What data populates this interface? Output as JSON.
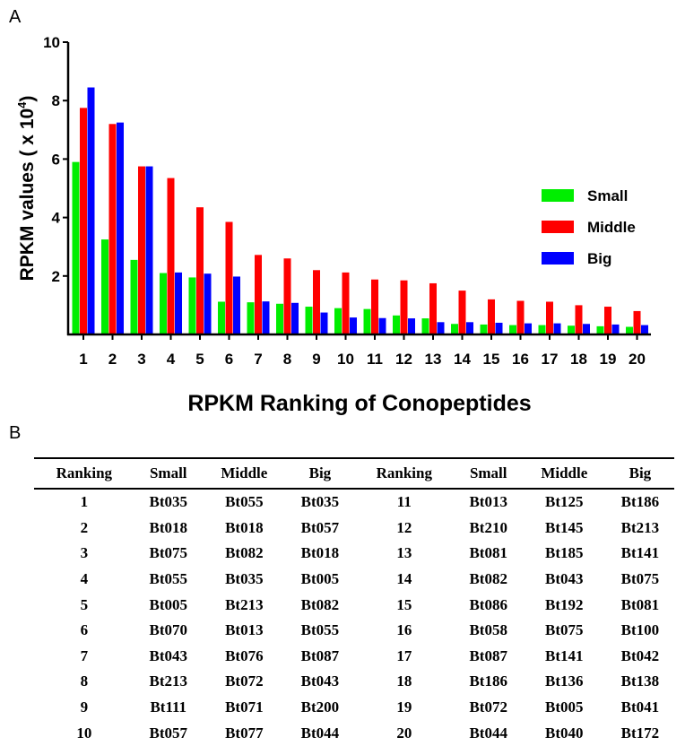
{
  "panels": {
    "a": "A",
    "b": "B"
  },
  "chart_data": {
    "type": "bar",
    "categories": [
      "1",
      "2",
      "3",
      "4",
      "5",
      "6",
      "7",
      "8",
      "9",
      "10",
      "11",
      "12",
      "13",
      "14",
      "15",
      "16",
      "17",
      "18",
      "19",
      "20"
    ],
    "series": [
      {
        "name": "Small",
        "color": "#00ee00",
        "values": [
          5.9,
          3.25,
          2.55,
          2.1,
          1.95,
          1.12,
          1.1,
          1.05,
          0.95,
          0.9,
          0.87,
          0.65,
          0.55,
          0.36,
          0.34,
          0.32,
          0.32,
          0.3,
          0.28,
          0.26
        ]
      },
      {
        "name": "Middle",
        "color": "#ff0000",
        "values": [
          7.75,
          7.2,
          5.75,
          5.35,
          4.35,
          3.85,
          2.72,
          2.6,
          2.2,
          2.12,
          1.88,
          1.85,
          1.75,
          1.5,
          1.2,
          1.15,
          1.12,
          1.0,
          0.95,
          0.8
        ]
      },
      {
        "name": "Big",
        "color": "#0000ff",
        "values": [
          8.45,
          7.25,
          5.75,
          2.12,
          2.08,
          1.98,
          1.13,
          1.08,
          0.75,
          0.58,
          0.56,
          0.55,
          0.42,
          0.42,
          0.4,
          0.38,
          0.38,
          0.36,
          0.34,
          0.32
        ]
      }
    ],
    "ylabel_main": "RPKM values ( x 10",
    "ylabel_sup": "4",
    "ylabel_end": ")",
    "xlabel": "RPKM Ranking of Conopeptides",
    "ylim": [
      0,
      10
    ],
    "yticks": [
      "2",
      "4",
      "6",
      "8",
      "10"
    ],
    "grid": false,
    "legend_position": "right"
  },
  "table": {
    "headers": [
      "Ranking",
      "Small",
      "Middle",
      "Big",
      "Ranking",
      "Small",
      "Middle",
      "Big"
    ],
    "rows": [
      [
        "1",
        "Bt035",
        "Bt055",
        "Bt035",
        "11",
        "Bt013",
        "Bt125",
        "Bt186"
      ],
      [
        "2",
        "Bt018",
        "Bt018",
        "Bt057",
        "12",
        "Bt210",
        "Bt145",
        "Bt213"
      ],
      [
        "3",
        "Bt075",
        "Bt082",
        "Bt018",
        "13",
        "Bt081",
        "Bt185",
        "Bt141"
      ],
      [
        "4",
        "Bt055",
        "Bt035",
        "Bt005",
        "14",
        "Bt082",
        "Bt043",
        "Bt075"
      ],
      [
        "5",
        "Bt005",
        "Bt213",
        "Bt082",
        "15",
        "Bt086",
        "Bt192",
        "Bt081"
      ],
      [
        "6",
        "Bt070",
        "Bt013",
        "Bt055",
        "16",
        "Bt058",
        "Bt075",
        "Bt100"
      ],
      [
        "7",
        "Bt043",
        "Bt076",
        "Bt087",
        "17",
        "Bt087",
        "Bt141",
        "Bt042"
      ],
      [
        "8",
        "Bt213",
        "Bt072",
        "Bt043",
        "18",
        "Bt186",
        "Bt136",
        "Bt138"
      ],
      [
        "9",
        "Bt111",
        "Bt071",
        "Bt200",
        "19",
        "Bt072",
        "Bt005",
        "Bt041"
      ],
      [
        "10",
        "Bt057",
        "Bt077",
        "Bt044",
        "20",
        "Bt044",
        "Bt040",
        "Bt172"
      ]
    ]
  }
}
